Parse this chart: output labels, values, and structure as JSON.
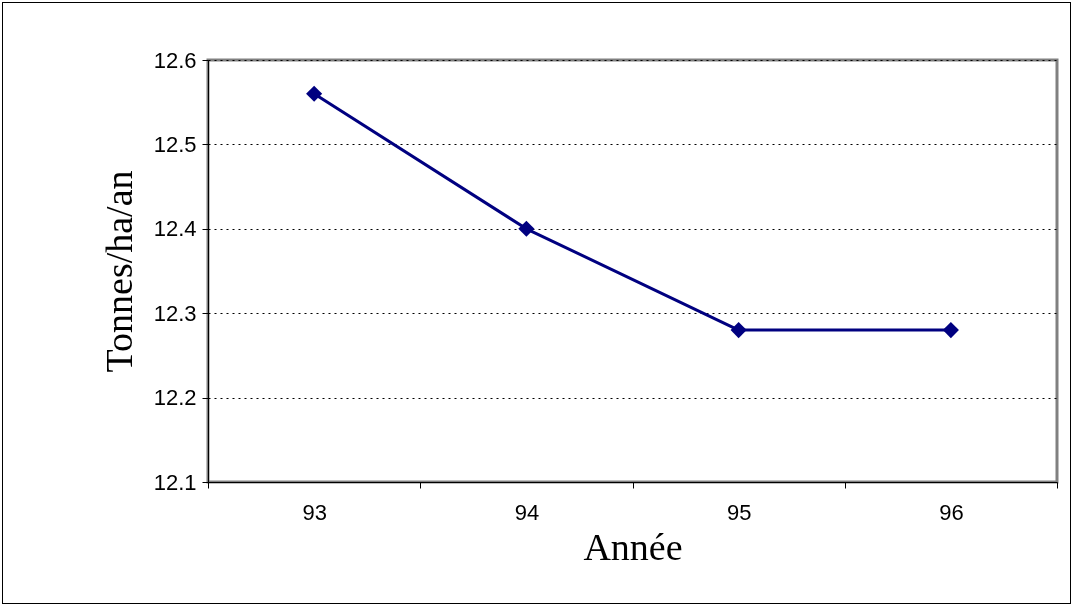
{
  "chart_data": {
    "type": "line",
    "xlabel": "Année",
    "ylabel": "Tonnes/ha/an",
    "categories": [
      "93",
      "94",
      "95",
      "96"
    ],
    "series": [
      {
        "color": "#000080",
        "values": [
          12.56,
          12.4,
          12.28,
          12.28
        ]
      }
    ],
    "ylim": [
      12.1,
      12.6
    ],
    "yticks": [
      12.1,
      12.2,
      12.3,
      12.4,
      12.5,
      12.6
    ],
    "grid": "y",
    "marker": "diamond",
    "line_style": "solid"
  }
}
